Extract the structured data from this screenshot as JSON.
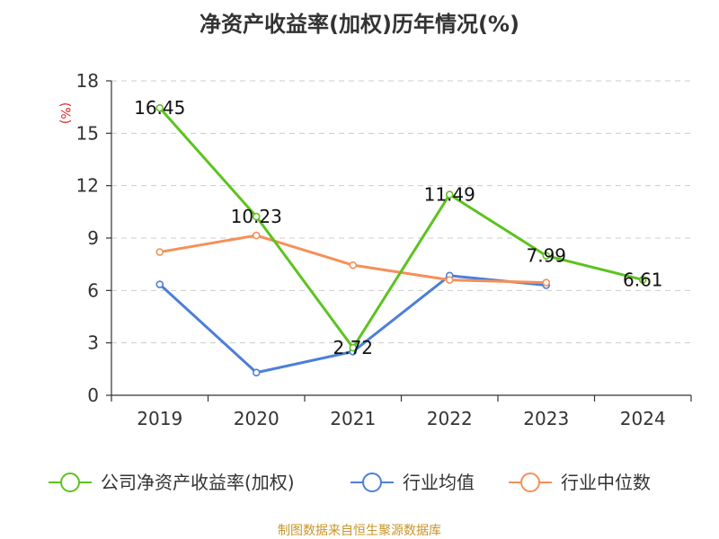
{
  "chart_data": {
    "type": "line",
    "title": "净资产收益率(加权)历年情况(%)",
    "ylabel": "(%)",
    "xlabel": "",
    "ylim": [
      0,
      18
    ],
    "yticks": [
      0,
      3,
      6,
      9,
      12,
      15,
      18
    ],
    "categories": [
      "2019",
      "2020",
      "2021",
      "2022",
      "2023",
      "2024"
    ],
    "grid": true,
    "legend_position": "bottom",
    "series": [
      {
        "name": "公司净资产收益率(加权)",
        "color": "#5cc31f",
        "values": [
          16.45,
          10.23,
          2.72,
          11.49,
          7.99,
          6.61
        ],
        "labels": [
          "16.45",
          "10.23",
          "2.72",
          "11.49",
          "7.99",
          "6.61"
        ]
      },
      {
        "name": "行业均值",
        "color": "#4d7fd8",
        "values": [
          6.35,
          1.3,
          2.5,
          6.85,
          6.3,
          null
        ],
        "labels": []
      },
      {
        "name": "行业中位数",
        "color": "#f59059",
        "values": [
          8.2,
          9.15,
          7.45,
          6.6,
          6.45,
          null
        ],
        "labels": []
      }
    ]
  },
  "source": "制图数据来自恒生聚源数据库"
}
